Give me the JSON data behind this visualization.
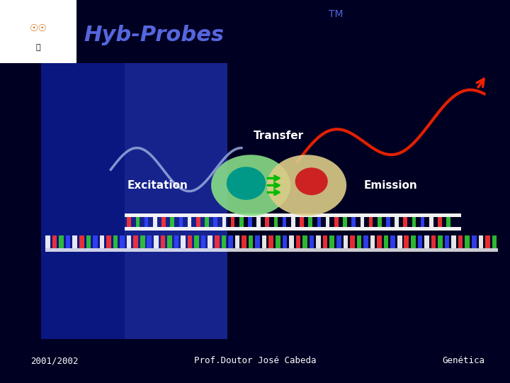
{
  "title": "Hyb-Probes",
  "title_superscript": "TM",
  "bg_top": "#000022",
  "bg_main": "#3344EE",
  "bg_footer": "#3344EE",
  "bg_left_strip": "#111166",
  "bg_left_strip2": "#223388",
  "logo_bg": "#FFFFFF",
  "title_color": "#5566DD",
  "footer_text_left": "2001/2002",
  "footer_text_center": "Prof.Doutor José Cabeda",
  "footer_text_right": "Genética",
  "footer_color": "#FFFFFF",
  "transfer_label": "Transfer",
  "excitation_label": "Excitation",
  "emission_label": "Emission",
  "label_color": "#FFFFFF",
  "oligo1_color_outer": "#88DD88",
  "oligo1_color_inner": "#009988",
  "oligo2_color_outer": "#DDCC88",
  "oligo2_color_inner": "#CC2222",
  "excitation_wave_color": "#99AADD",
  "emission_wave_color": "#EE2200",
  "arrow_green_color": "#00BB00",
  "dna_backbone_color": "#FFFFFF",
  "dna_bar_colors": [
    "#FF3333",
    "#33CC33",
    "#3344FF",
    "#FFFFFF"
  ],
  "dna2_bar_colors": [
    "#FFFFFF",
    "#FF3333",
    "#33CC33",
    "#3344FF"
  ]
}
